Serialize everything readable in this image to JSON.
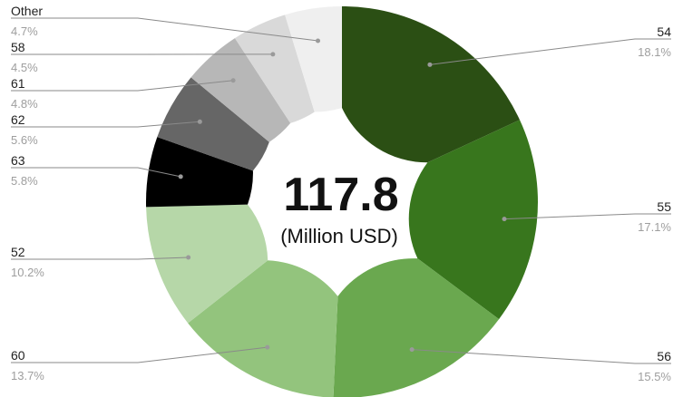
{
  "chart_data": {
    "type": "pie",
    "donut": true,
    "center_value": "117.8",
    "center_unit": "(Million USD)",
    "slices": [
      {
        "label": "54",
        "percent": "18.1%",
        "value": 18.1,
        "color": "#2b4f14"
      },
      {
        "label": "55",
        "percent": "17.1%",
        "value": 17.1,
        "color": "#38761d"
      },
      {
        "label": "56",
        "percent": "15.5%",
        "value": 15.5,
        "color": "#6aa84f"
      },
      {
        "label": "60",
        "percent": "13.7%",
        "value": 13.7,
        "color": "#93c47d"
      },
      {
        "label": "52",
        "percent": "10.2%",
        "value": 10.2,
        "color": "#b6d7a8"
      },
      {
        "label": "63",
        "percent": "5.8%",
        "value": 5.8,
        "color": "#000000"
      },
      {
        "label": "62",
        "percent": "5.6%",
        "value": 5.6,
        "color": "#666666"
      },
      {
        "label": "61",
        "percent": "4.8%",
        "value": 4.8,
        "color": "#b7b7b7"
      },
      {
        "label": "58",
        "percent": "4.5%",
        "value": 4.5,
        "color": "#d9d9d9"
      },
      {
        "label": "Other",
        "percent": "4.7%",
        "value": 4.7,
        "color": "#efefef"
      }
    ],
    "legend": "none"
  }
}
